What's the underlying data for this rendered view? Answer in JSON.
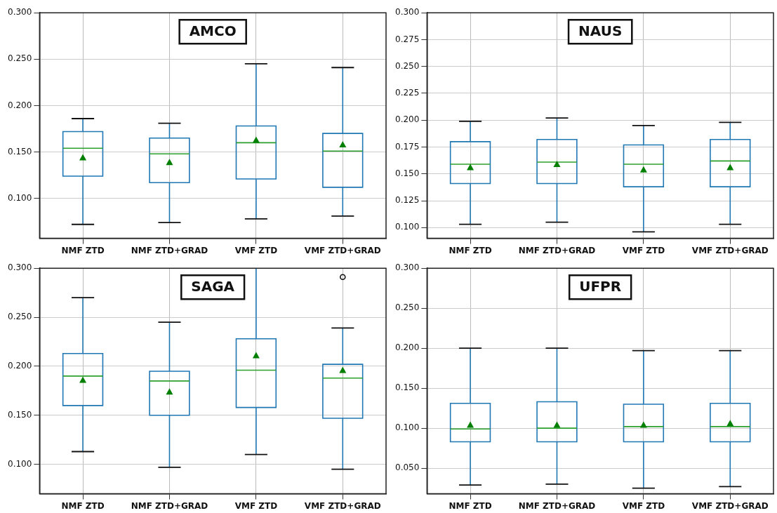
{
  "chart_data": [
    {
      "type": "box",
      "title": "AMCO",
      "categories": [
        "NMF ZTD",
        "NMF ZTD+GRAD",
        "VMF ZTD",
        "VMF ZTD+GRAD"
      ],
      "color": "#1f77b4",
      "marker": "triangle",
      "grid": true,
      "ylim": [
        0.057,
        0.3
      ],
      "yticks": [
        {
          "value": 0.1,
          "label": "0.100"
        },
        {
          "value": 0.15,
          "label": "0.150"
        },
        {
          "value": 0.2,
          "label": "0.200"
        },
        {
          "value": 0.25,
          "label": "0.250"
        },
        {
          "value": 0.3,
          "label": "0.300"
        }
      ],
      "boxes": [
        {
          "low": 0.072,
          "q1": 0.124,
          "median": 0.154,
          "q3": 0.172,
          "high": 0.186,
          "mean": 0.144
        },
        {
          "low": 0.074,
          "q1": 0.117,
          "median": 0.148,
          "q3": 0.165,
          "high": 0.181,
          "mean": 0.139
        },
        {
          "low": 0.078,
          "q1": 0.121,
          "median": 0.16,
          "q3": 0.178,
          "high": 0.245,
          "mean": 0.163
        },
        {
          "low": 0.081,
          "q1": 0.112,
          "median": 0.151,
          "q3": 0.17,
          "high": 0.241,
          "mean": 0.158
        }
      ]
    },
    {
      "type": "box",
      "title": "NAUS",
      "categories": [
        "NMF ZTD",
        "NMF ZTD+GRAD",
        "VMF ZTD",
        "VMF ZTD+GRAD"
      ],
      "color": "#1f77b4",
      "marker": "triangle",
      "grid": true,
      "ylim": [
        0.09,
        0.3
      ],
      "yticks": [
        {
          "value": 0.1,
          "label": "0.100"
        },
        {
          "value": 0.125,
          "label": "0.125"
        },
        {
          "value": 0.15,
          "label": "0.150"
        },
        {
          "value": 0.175,
          "label": "0.175"
        },
        {
          "value": 0.2,
          "label": "0.200"
        },
        {
          "value": 0.225,
          "label": "0.225"
        },
        {
          "value": 0.25,
          "label": "0.250"
        },
        {
          "value": 0.275,
          "label": "0.275"
        },
        {
          "value": 0.3,
          "label": "0.300"
        }
      ],
      "boxes": [
        {
          "low": 0.103,
          "q1": 0.141,
          "median": 0.159,
          "q3": 0.18,
          "high": 0.199,
          "mean": 0.156
        },
        {
          "low": 0.105,
          "q1": 0.141,
          "median": 0.161,
          "q3": 0.182,
          "high": 0.202,
          "mean": 0.159
        },
        {
          "low": 0.096,
          "q1": 0.138,
          "median": 0.159,
          "q3": 0.177,
          "high": 0.195,
          "mean": 0.154
        },
        {
          "low": 0.103,
          "q1": 0.138,
          "median": 0.162,
          "q3": 0.182,
          "high": 0.198,
          "mean": 0.156
        }
      ]
    },
    {
      "type": "box",
      "title": "SAGA",
      "categories": [
        "NMF ZTD",
        "NMF ZTD+GRAD",
        "VMF ZTD",
        "VMF ZTD+GRAD"
      ],
      "color": "#1f77b4",
      "marker": "triangle",
      "grid": true,
      "ylim": [
        0.07,
        0.3
      ],
      "yticks": [
        {
          "value": 0.1,
          "label": "0.100"
        },
        {
          "value": 0.15,
          "label": "0.150"
        },
        {
          "value": 0.2,
          "label": "0.200"
        },
        {
          "value": 0.25,
          "label": "0.250"
        },
        {
          "value": 0.3,
          "label": "0.300"
        }
      ],
      "boxes": [
        {
          "low": 0.113,
          "q1": 0.16,
          "median": 0.19,
          "q3": 0.213,
          "high": 0.27,
          "mean": 0.186
        },
        {
          "low": 0.097,
          "q1": 0.15,
          "median": 0.185,
          "q3": 0.195,
          "high": 0.245,
          "mean": 0.174
        },
        {
          "low": 0.11,
          "q1": 0.158,
          "median": 0.196,
          "q3": 0.228,
          "high": 0.3,
          "mean": 0.211
        },
        {
          "low": 0.095,
          "q1": 0.147,
          "median": 0.188,
          "q3": 0.202,
          "high": 0.239,
          "mean": 0.196,
          "outliers": [
            0.291
          ]
        }
      ]
    },
    {
      "type": "box",
      "title": "UFPR",
      "categories": [
        "NMF ZTD",
        "NMF ZTD+GRAD",
        "VMF ZTD",
        "VMF ZTD+GRAD"
      ],
      "color": "#1f77b4",
      "marker": "triangle",
      "grid": true,
      "ylim": [
        0.018,
        0.3
      ],
      "yticks": [
        {
          "value": 0.05,
          "label": "0.050"
        },
        {
          "value": 0.1,
          "label": "0.100"
        },
        {
          "value": 0.15,
          "label": "0.150"
        },
        {
          "value": 0.2,
          "label": "0.200"
        },
        {
          "value": 0.25,
          "label": "0.250"
        },
        {
          "value": 0.3,
          "label": "0.300"
        }
      ],
      "boxes": [
        {
          "low": 0.029,
          "q1": 0.083,
          "median": 0.099,
          "q3": 0.131,
          "high": 0.2,
          "mean": 0.104
        },
        {
          "low": 0.03,
          "q1": 0.083,
          "median": 0.1,
          "q3": 0.133,
          "high": 0.2,
          "mean": 0.104
        },
        {
          "low": 0.025,
          "q1": 0.083,
          "median": 0.102,
          "q3": 0.13,
          "high": 0.197,
          "mean": 0.104
        },
        {
          "low": 0.027,
          "q1": 0.083,
          "median": 0.102,
          "q3": 0.131,
          "high": 0.197,
          "mean": 0.106
        }
      ]
    }
  ]
}
